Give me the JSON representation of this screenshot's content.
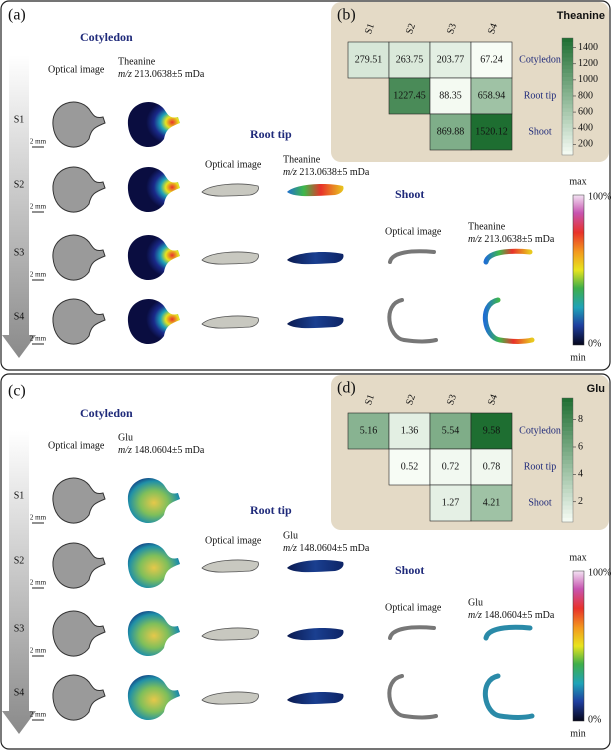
{
  "panels": [
    {
      "label": "(a)",
      "sections": [
        {
          "title": "Cotyledon",
          "optical": "Optical image",
          "analyte": "Theanine",
          "mz": "m/z",
          "mz_value": "213.0638±5 mDa"
        },
        {
          "title": "Root tip",
          "optical": "Optical image",
          "analyte": "Theanine",
          "mz": "m/z",
          "mz_value": "213.0638±5 mDa"
        },
        {
          "title": "Shoot",
          "optical": "Optical image",
          "analyte": "Theanine",
          "mz": "m/z",
          "mz_value": "213.0638±5 mDa"
        }
      ],
      "stages": [
        "S1",
        "S2",
        "S3",
        "S4"
      ],
      "scale_bar": "2 mm",
      "intensity_scale": {
        "top": "max",
        "top_percent": "100%",
        "bottom_percent": "0%",
        "bottom": "min"
      }
    },
    {
      "label": "(c)",
      "sections": [
        {
          "title": "Cotyledon",
          "optical": "Optical image",
          "analyte": "Glu",
          "mz": "m/z",
          "mz_value": "148.0604±5 mDa"
        },
        {
          "title": "Root tip",
          "optical": "Optical image",
          "analyte": "Glu",
          "mz": "m/z",
          "mz_value": "148.0604±5 mDa"
        },
        {
          "title": "Shoot",
          "optical": "Optical image",
          "analyte": "Glu",
          "mz": "m/z",
          "mz_value": "148.0604±5 mDa"
        }
      ],
      "stages": [
        "S1",
        "S2",
        "S3",
        "S4"
      ],
      "scale_bar": "2 mm",
      "intensity_scale": {
        "top": "max",
        "top_percent": "100%",
        "bottom_percent": "0%",
        "bottom": "min"
      }
    }
  ],
  "chart_data": [
    {
      "type": "heatmap",
      "panel_label": "(b)",
      "title": "Theanine",
      "columns": [
        "S1",
        "S2",
        "S3",
        "S4"
      ],
      "rows": [
        "Cotyledon",
        "Root tip",
        "Shoot"
      ],
      "values": [
        [
          279.51,
          263.75,
          203.77,
          67.24
        ],
        [
          null,
          1227.45,
          88.35,
          658.94
        ],
        [
          null,
          null,
          869.88,
          1520.12
        ]
      ],
      "colormap": [
        "#f7fcf5",
        "#1e6e31"
      ],
      "clim": [
        67,
        1520
      ],
      "cticks": [
        200,
        400,
        600,
        800,
        1000,
        1200,
        1400
      ]
    },
    {
      "type": "heatmap",
      "panel_label": "(d)",
      "title": "Glu",
      "columns": [
        "S1",
        "S2",
        "S3",
        "S4"
      ],
      "rows": [
        "Cotyledon",
        "Root tip",
        "Shoot"
      ],
      "values": [
        [
          5.16,
          1.36,
          5.54,
          9.58
        ],
        [
          null,
          0.52,
          0.72,
          0.78
        ],
        [
          null,
          null,
          1.27,
          4.21
        ]
      ],
      "colormap": [
        "#f7fcf5",
        "#1e6e31"
      ],
      "clim": [
        0.52,
        9.58
      ],
      "cticks": [
        2,
        4,
        6,
        8
      ]
    }
  ]
}
